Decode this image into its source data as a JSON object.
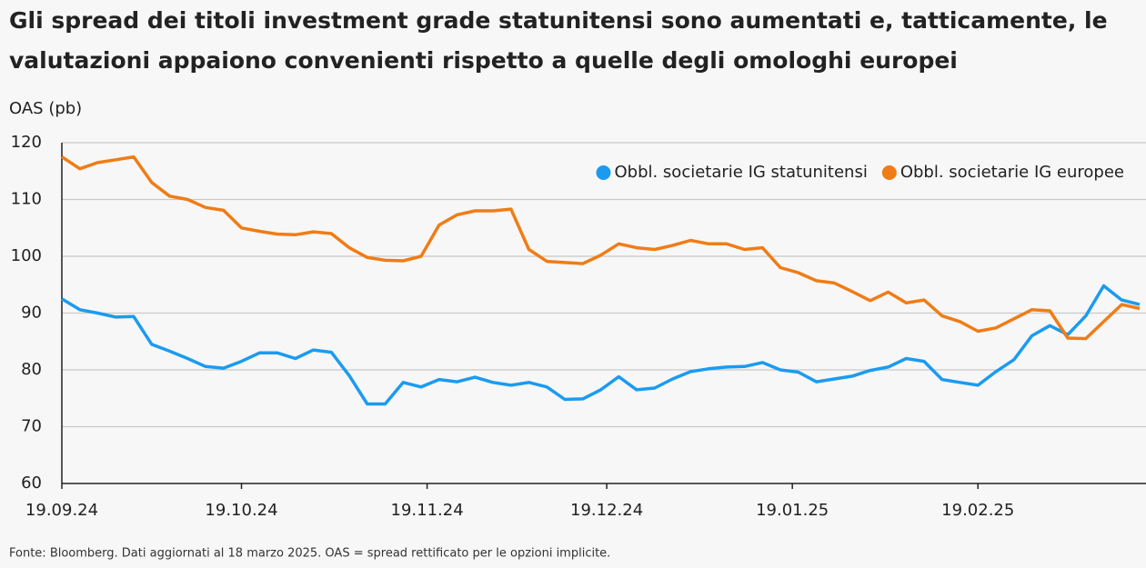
{
  "chart_data": {
    "type": "line",
    "title": "Gli spread dei titoli investment grade statunitensi sono aumentati e, tatticamente, le valutazioni appaiono convenienti rispetto a quelle degli omologhi europei",
    "y_label": "OAS (pb)",
    "footnote": "Fonte: Bloomberg. Dati aggiornati al 18 marzo 2025. OAS = spread rettificato per le opzioni implicite.",
    "x": [
      "19.09.24",
      "22.09.24",
      "25.09.24",
      "28.09.24",
      "01.10.24",
      "04.10.24",
      "07.10.24",
      "10.10.24",
      "13.10.24",
      "16.10.24",
      "19.10.24",
      "22.10.24",
      "25.10.24",
      "28.10.24",
      "31.10.24",
      "03.11.24",
      "06.11.24",
      "09.11.24",
      "12.11.24",
      "15.11.24",
      "18.11.24",
      "21.11.24",
      "24.11.24",
      "27.11.24",
      "30.11.24",
      "03.12.24",
      "06.12.24",
      "09.12.24",
      "12.12.24",
      "15.12.24",
      "18.12.24",
      "21.12.24",
      "24.12.24",
      "27.12.24",
      "30.12.24",
      "02.01.25",
      "05.01.25",
      "08.01.25",
      "11.01.25",
      "14.01.25",
      "17.01.25",
      "20.01.25",
      "23.01.25",
      "26.01.25",
      "29.01.25",
      "01.02.25",
      "04.02.25",
      "07.02.25",
      "10.02.25",
      "13.02.25",
      "16.02.25",
      "19.02.25",
      "22.02.25",
      "25.02.25",
      "28.02.25",
      "03.03.25",
      "06.03.25",
      "09.03.25",
      "12.03.25",
      "15.03.25",
      "18.03.25"
    ],
    "series": [
      {
        "name": "Obbl. societarie IG statunitensi",
        "color": "#1b9bf0",
        "values": [
          92.5,
          90.6,
          90.0,
          89.3,
          89.4,
          84.5,
          83.3,
          82,
          80.6,
          80.3,
          81.5,
          83,
          83,
          82,
          83.5,
          83.1,
          79,
          74,
          74,
          77.8,
          77,
          78.3,
          77.9,
          78.7,
          77.8,
          77.3,
          77.8,
          77,
          74.8,
          74.9,
          76.5,
          78.8,
          76.5,
          76.8,
          78.4,
          79.7,
          80.2,
          80.5,
          80.6,
          81.3,
          80,
          79.6,
          77.9,
          78.4,
          78.9,
          79.9,
          80.5,
          82,
          81.5,
          78.3,
          77.8,
          77.3,
          79.7,
          81.8,
          86,
          87.8,
          86.2,
          89.5,
          94.8,
          92.3,
          91.5
        ]
      },
      {
        "name": "Obbl. societarie IG europee",
        "color": "#f07c16",
        "values": [
          117.5,
          115.4,
          116.5,
          117.0,
          117.5,
          113,
          110.6,
          110,
          108.6,
          108.1,
          105,
          104.4,
          103.9,
          103.8,
          104.3,
          104,
          101.5,
          99.8,
          99.3,
          99.2,
          100,
          105.5,
          107.3,
          108,
          108,
          108.3,
          101.2,
          99.1,
          98.9,
          98.7,
          100.2,
          102.2,
          101.5,
          101.2,
          101.9,
          102.8,
          102.2,
          102.2,
          101.2,
          101.5,
          98,
          97.1,
          95.7,
          95.3,
          93.8,
          92.2,
          93.7,
          91.8,
          92.3,
          89.5,
          88.5,
          86.8,
          87.4,
          89,
          90.6,
          90.4,
          85.6,
          85.5,
          88.5,
          91.5,
          90.8
        ]
      }
    ],
    "xlim": [
      "19.09.24",
      "18.03.25"
    ],
    "xticks": [
      "19.09.24",
      "19.10.24",
      "19.11.24",
      "19.12.24",
      "19.01.25",
      "19.02.25"
    ],
    "ylim": [
      60,
      120
    ],
    "yticks": [
      60,
      70,
      80,
      90,
      100,
      110,
      120
    ],
    "grid": true,
    "legend": "top-right"
  }
}
